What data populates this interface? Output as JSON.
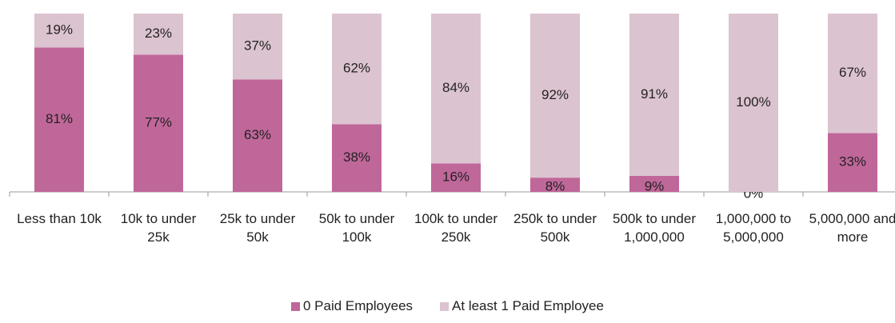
{
  "chart_data": {
    "type": "stacked_bar",
    "categories": [
      "Less than 10k",
      "10k to under 25k",
      "25k to under 50k",
      "50k to under 100k",
      "100k to under 250k",
      "250k to under 500k",
      "500k to under 1,000,000",
      "1,000,000 to 5,000,000",
      "5,000,000 and more"
    ],
    "series": [
      {
        "name": "0 Paid Employees",
        "color": "#c0679a",
        "values": [
          81,
          77,
          63,
          38,
          16,
          8,
          9,
          0,
          33
        ],
        "value_labels": [
          "81%",
          "77%",
          "63%",
          "38%",
          "16%",
          "8%",
          "9%",
          "0%",
          "33%"
        ]
      },
      {
        "name": "At least 1 Paid Employee",
        "color": "#dcc3d0",
        "values": [
          19,
          23,
          37,
          62,
          84,
          92,
          91,
          100,
          67
        ],
        "value_labels": [
          "19%",
          "23%",
          "37%",
          "62%",
          "84%",
          "92%",
          "91%",
          "100%",
          "67%"
        ]
      }
    ],
    "ylim": [
      0,
      100
    ],
    "legend": "bottom"
  }
}
